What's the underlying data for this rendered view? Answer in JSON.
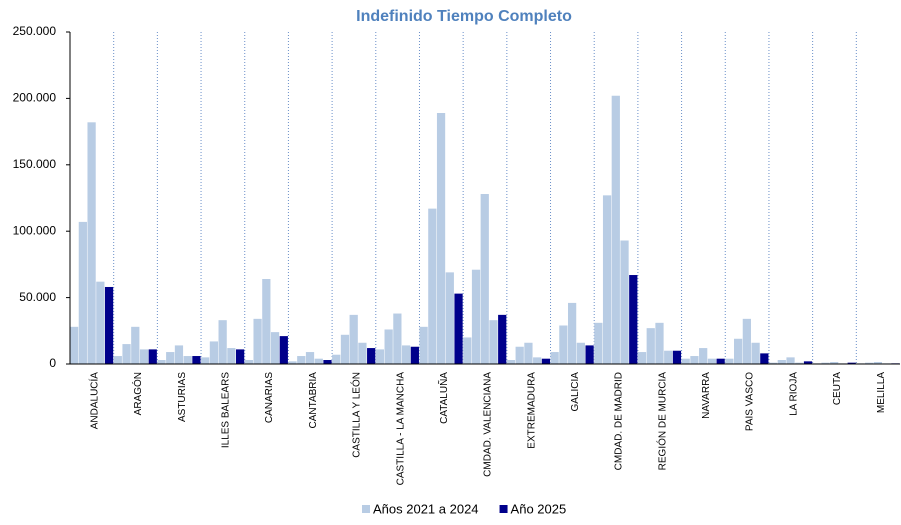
{
  "chart_data": {
    "type": "bar",
    "title": "Indefinido Tiempo Completo",
    "categories": [
      "ANDALUCÍA",
      "ARAGÓN",
      "ASTURIAS",
      "ILLES BALEARS",
      "CANARIAS",
      "CANTABRIA",
      "CASTILLA Y LEÓN",
      "CASTILLA - LA MANCHA",
      "CATALUÑA",
      "CMDAD. VALENCIANA",
      "EXTREMADURA",
      "GALICIA",
      "CMDAD. DE MADRID",
      "REGIÓN DE MURCIA",
      "NAVARRA",
      "PAIS VASCO",
      "LA RIOJA",
      "CEUTA",
      "MELILLA"
    ],
    "series": [
      {
        "name": "Años 2021 a 2024",
        "color": "#b8cce4",
        "values": [
          [
            28000,
            107000,
            182000,
            62000
          ],
          [
            6000,
            15000,
            28000,
            11000
          ],
          [
            3000,
            9000,
            14000,
            6000
          ],
          [
            5000,
            17000,
            33000,
            12000
          ],
          [
            3000,
            34000,
            64000,
            24000
          ],
          [
            2000,
            6000,
            9000,
            4000
          ],
          [
            7000,
            22000,
            37000,
            16000
          ],
          [
            11000,
            26000,
            38000,
            14000
          ],
          [
            28000,
            117000,
            189000,
            69000
          ],
          [
            20000,
            71000,
            128000,
            33000
          ],
          [
            3000,
            13000,
            16000,
            5000
          ],
          [
            9000,
            29000,
            46000,
            16000
          ],
          [
            31000,
            127000,
            202000,
            93000
          ],
          [
            9000,
            27000,
            31000,
            10000
          ],
          [
            4000,
            6000,
            12000,
            4000
          ],
          [
            4000,
            19000,
            34000,
            16000
          ],
          [
            1000,
            3000,
            5000,
            1000
          ],
          [
            500,
            1000,
            1500,
            500
          ],
          [
            500,
            1000,
            1500,
            500
          ]
        ]
      },
      {
        "name": "Año 2025",
        "color": "#00008b",
        "values": [
          58000,
          11000,
          6000,
          11000,
          21000,
          3000,
          12000,
          13000,
          53000,
          37000,
          4000,
          14000,
          67000,
          10000,
          4000,
          8000,
          2000,
          1000,
          500
        ]
      }
    ],
    "ylim": [
      0,
      250000
    ],
    "yticks": [
      0,
      {
        "value": 50000,
        "label": "50.000"
      },
      {
        "value": 100000,
        "label": "100.000"
      },
      {
        "value": 150000,
        "label": "150.000"
      },
      {
        "value": 200000,
        "label": "200.000"
      },
      {
        "value": 250000,
        "label": "250.000"
      }
    ],
    "legend": "bottom"
  }
}
